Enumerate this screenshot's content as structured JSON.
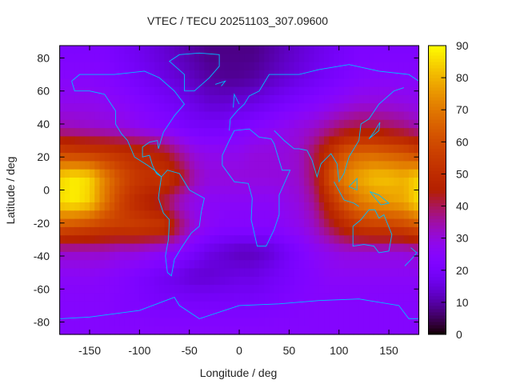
{
  "chart_data": {
    "type": "heatmap",
    "title": "VTEC / TECU 20251103_307.09600",
    "xlabel": "Longitude / deg",
    "ylabel": "Latitude / deg",
    "xlim": [
      -180,
      180
    ],
    "ylim": [
      -87.5,
      87.5
    ],
    "clim": [
      0,
      90
    ],
    "xticks": [
      -150,
      -100,
      -50,
      0,
      50,
      100,
      150
    ],
    "yticks": [
      -80,
      -60,
      -40,
      -20,
      0,
      20,
      40,
      60,
      80
    ],
    "cbticks": [
      0,
      10,
      20,
      30,
      40,
      50,
      60,
      70,
      80,
      90
    ],
    "colormap": "black-blue-violet-red-orange-yellow",
    "coastline_color": "#00bfff",
    "grid_lon": [
      -180,
      -165,
      -150,
      -135,
      -120,
      -105,
      -90,
      -75,
      -60,
      -45,
      -30,
      -15,
      0,
      15,
      30,
      45,
      60,
      75,
      90,
      105,
      120,
      135,
      150,
      165,
      180
    ],
    "grid_lat": [
      82.5,
      67.5,
      52.5,
      37.5,
      22.5,
      7.5,
      -7.5,
      -22.5,
      -37.5,
      -52.5,
      -67.5,
      -82.5
    ],
    "values": [
      [
        22,
        22,
        22,
        22,
        20,
        18,
        16,
        14,
        12,
        10,
        8,
        8,
        8,
        8,
        10,
        12,
        14,
        16,
        18,
        20,
        22,
        22,
        22,
        22,
        22
      ],
      [
        25,
        25,
        25,
        24,
        22,
        20,
        18,
        16,
        14,
        12,
        10,
        9,
        9,
        10,
        12,
        14,
        16,
        18,
        20,
        22,
        24,
        25,
        25,
        25,
        25
      ],
      [
        28,
        28,
        28,
        27,
        26,
        24,
        22,
        20,
        18,
        16,
        14,
        14,
        15,
        16,
        18,
        20,
        22,
        24,
        26,
        28,
        30,
        30,
        30,
        29,
        28
      ],
      [
        34,
        33,
        32,
        31,
        30,
        28,
        26,
        24,
        22,
        20,
        20,
        20,
        22,
        24,
        26,
        28,
        30,
        32,
        36,
        40,
        42,
        42,
        40,
        38,
        34
      ],
      [
        58,
        56,
        55,
        54,
        52,
        50,
        48,
        44,
        36,
        30,
        28,
        28,
        28,
        30,
        30,
        30,
        32,
        40,
        52,
        62,
        66,
        66,
        64,
        62,
        58
      ],
      [
        85,
        88,
        85,
        72,
        62,
        55,
        52,
        54,
        46,
        34,
        30,
        30,
        30,
        30,
        30,
        30,
        32,
        40,
        60,
        72,
        78,
        82,
        82,
        80,
        85
      ],
      [
        86,
        88,
        84,
        70,
        58,
        50,
        45,
        40,
        32,
        28,
        26,
        26,
        26,
        26,
        26,
        28,
        30,
        36,
        50,
        62,
        70,
        74,
        76,
        78,
        86
      ],
      [
        62,
        60,
        58,
        56,
        56,
        56,
        55,
        54,
        40,
        30,
        26,
        24,
        24,
        24,
        24,
        26,
        28,
        32,
        40,
        48,
        54,
        56,
        56,
        58,
        62
      ],
      [
        32,
        32,
        32,
        32,
        30,
        30,
        28,
        26,
        24,
        20,
        16,
        14,
        12,
        12,
        14,
        18,
        22,
        26,
        28,
        30,
        30,
        30,
        30,
        30,
        32
      ],
      [
        26,
        26,
        26,
        25,
        24,
        22,
        20,
        18,
        16,
        14,
        14,
        15,
        16,
        16,
        18,
        20,
        22,
        24,
        26,
        26,
        26,
        26,
        26,
        26,
        26
      ],
      [
        24,
        24,
        24,
        24,
        23,
        22,
        21,
        20,
        20,
        20,
        20,
        20,
        20,
        20,
        21,
        22,
        23,
        24,
        24,
        24,
        24,
        24,
        24,
        24,
        24
      ],
      [
        24,
        24,
        24,
        24,
        24,
        24,
        24,
        24,
        24,
        24,
        24,
        24,
        24,
        24,
        24,
        24,
        24,
        24,
        24,
        24,
        24,
        24,
        24,
        24,
        24
      ]
    ]
  }
}
